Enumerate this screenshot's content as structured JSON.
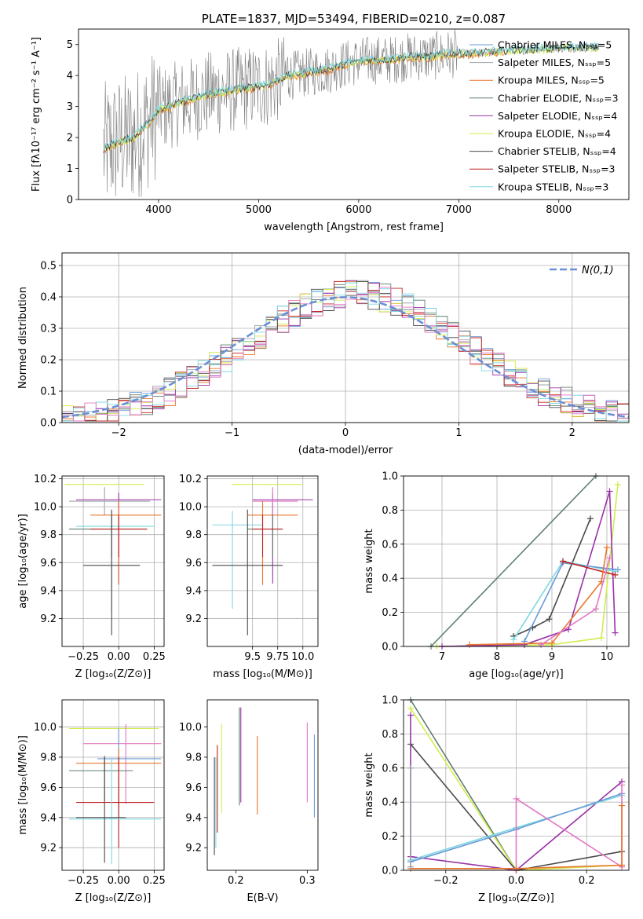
{
  "colors": {
    "chabrier_miles": "#6b9bd8",
    "salpeter_miles": "#9ea3aa",
    "kroupa_miles": "#e8762b",
    "chabrier_elodie": "#5f7f6d",
    "salpeter_elodie": "#9a32a8",
    "kroupa_elodie": "#d2ec4e",
    "chabrier_stelib": "#4a4a4a",
    "salpeter_stelib": "#c0201f",
    "kroupa_stelib": "#7ed8df",
    "pink": "#e377c2",
    "normal_curve": "#6a8fd6",
    "grid": "#b0b0b0"
  },
  "chart_data": [
    {
      "type": "line",
      "title": "PLATE=1837, MJD=53494, FIBERID=0210, z=0.087",
      "xlabel": "wavelength [Angstrom, rest frame]",
      "ylabel": "Flux [fλ10⁻¹⁷ erg cm⁻² s⁻¹ A⁻¹]",
      "xlim": [
        3200,
        8700
      ],
      "ylim": [
        0,
        5.5
      ],
      "xticks": [
        4000,
        5000,
        6000,
        7000,
        8000
      ],
      "yticks": [
        0,
        1,
        2,
        3,
        4,
        5
      ],
      "grid": false,
      "legend_position": "right",
      "legend": [
        {
          "label": "Chabrier MILES, Nₛₛₚ=5",
          "key": "chabrier_miles"
        },
        {
          "label": "Salpeter MILES, Nₛₛₚ=5",
          "key": "salpeter_miles"
        },
        {
          "label": "Kroupa MILES, Nₛₛₚ=5",
          "key": "kroupa_miles"
        },
        {
          "label": "Chabrier ELODIE, Nₛₛₚ=3",
          "key": "chabrier_elodie"
        },
        {
          "label": "Salpeter ELODIE, Nₛₛₚ=4",
          "key": "salpeter_elodie"
        },
        {
          "label": "Kroupa ELODIE, Nₛₛₚ=4",
          "key": "kroupa_elodie"
        },
        {
          "label": "Chabrier STELIB, Nₛₛₚ=4",
          "key": "chabrier_stelib"
        },
        {
          "label": "Salpeter STELIB, Nₛₛₚ=3",
          "key": "salpeter_stelib"
        },
        {
          "label": "Kroupa STELIB, Nₛₛₚ=3",
          "key": "kroupa_stelib"
        }
      ],
      "model_continuum": {
        "x": [
          3450,
          3550,
          3650,
          3750,
          3900,
          4000,
          4100,
          4300,
          4500,
          4700,
          4900,
          5100,
          5300,
          5500,
          5700,
          5900,
          6100,
          6300,
          6500,
          6700,
          6900,
          7100,
          7300,
          7500,
          7800,
          8100,
          8400
        ],
        "y": [
          1.6,
          1.8,
          1.9,
          2.0,
          2.5,
          2.9,
          3.0,
          3.2,
          3.4,
          3.5,
          3.6,
          3.7,
          4.0,
          4.1,
          4.2,
          4.4,
          4.5,
          4.5,
          4.6,
          4.6,
          4.7,
          4.7,
          4.75,
          4.8,
          4.85,
          4.9,
          4.9
        ]
      }
    },
    {
      "type": "bar",
      "title": "",
      "xlabel": "(data-model)/error",
      "ylabel": "Normed distribution",
      "xlim": [
        -2.5,
        2.5
      ],
      "ylim": [
        0,
        0.54
      ],
      "xticks": [
        -2,
        -1,
        0,
        1,
        2
      ],
      "yticks": [
        0.0,
        0.1,
        0.2,
        0.3,
        0.4,
        0.5
      ],
      "grid": true,
      "legend": "N(0,1)",
      "legend_position": "top-right",
      "bin_centers": [
        -2.4,
        -2.2,
        -2.0,
        -1.8,
        -1.6,
        -1.4,
        -1.2,
        -1.0,
        -0.8,
        -0.6,
        -0.4,
        -0.2,
        0.0,
        0.2,
        0.4,
        0.6,
        0.8,
        1.0,
        1.2,
        1.4,
        1.6,
        1.8,
        2.0,
        2.2,
        2.4
      ],
      "envelope_values": [
        0.02,
        0.03,
        0.05,
        0.07,
        0.1,
        0.14,
        0.19,
        0.25,
        0.31,
        0.36,
        0.39,
        0.4,
        0.41,
        0.4,
        0.37,
        0.33,
        0.28,
        0.23,
        0.18,
        0.13,
        0.09,
        0.06,
        0.04,
        0.03,
        0.02
      ]
    },
    {
      "type": "scatter",
      "title": "",
      "xlabel": "Z [log₁₀(Z/Z⊙)]",
      "ylabel": "age [log₁₀(age/yr)]",
      "xlim": [
        -0.4,
        0.32
      ],
      "ylim": [
        9.0,
        10.22
      ],
      "xticks": [
        -0.25,
        0.0,
        0.25
      ],
      "xticklabels": [
        "−0.25",
        "0.00",
        "0.25"
      ],
      "yticks": [
        9.2,
        9.4,
        9.6,
        9.8,
        10.0,
        10.2
      ],
      "grid": true,
      "points": [
        {
          "x": -0.02,
          "y": 10.16,
          "xerr": [
            0.36,
            0.2
          ],
          "yerr": [
            0.0,
            0.0
          ],
          "key": "kroupa_elodie"
        },
        {
          "x": 0.0,
          "y": 10.05,
          "xerr": [
            0.3,
            0.3
          ],
          "yerr": [
            0.6,
            0.05
          ],
          "key": "salpeter_elodie"
        },
        {
          "x": -0.1,
          "y": 10.04,
          "xerr": [
            0.25,
            0.32
          ],
          "yerr": [
            0.1,
            0.1
          ],
          "key": "salpeter_miles"
        },
        {
          "x": 0.0,
          "y": 9.94,
          "xerr": [
            0.2,
            0.3
          ],
          "yerr": [
            0.5,
            0.1
          ],
          "key": "kroupa_miles"
        },
        {
          "x": -0.05,
          "y": 9.86,
          "xerr": [
            0.25,
            0.3
          ],
          "yerr": [
            0.6,
            0.1
          ],
          "key": "kroupa_stelib"
        },
        {
          "x": -0.05,
          "y": 9.84,
          "xerr": [
            0.3,
            0.25
          ],
          "yerr": [
            0.2,
            0.1
          ],
          "key": "chabrier_elodie"
        },
        {
          "x": 0.0,
          "y": 9.84,
          "xerr": [
            0.2,
            0.2
          ],
          "yerr": [
            0.2,
            0.1
          ],
          "key": "salpeter_stelib"
        },
        {
          "x": -0.05,
          "y": 9.58,
          "xerr": [
            0.2,
            0.2
          ],
          "yerr": [
            0.5,
            0.4
          ],
          "key": "chabrier_stelib"
        }
      ]
    },
    {
      "type": "scatter",
      "title": "",
      "xlabel": "mass [log₁₀(M/M⊙)]",
      "ylabel": "",
      "xlim": [
        9.05,
        10.15
      ],
      "ylim": [
        9.0,
        10.22
      ],
      "xticks": [
        9.5,
        9.75,
        10.0
      ],
      "xticklabels": [
        "9.5",
        "9.75",
        "10.0"
      ],
      "yticks": [
        9.2,
        9.4,
        9.6,
        9.8,
        10.0,
        10.2
      ],
      "grid": true,
      "points": [
        {
          "x": 9.6,
          "y": 10.16,
          "xerr": [
            0.3,
            0.4
          ],
          "yerr": [
            0.0,
            0.0
          ],
          "key": "kroupa_elodie"
        },
        {
          "x": 9.7,
          "y": 10.05,
          "xerr": [
            0.2,
            0.4
          ],
          "yerr": [
            0.6,
            0.05
          ],
          "key": "salpeter_elodie"
        },
        {
          "x": 9.7,
          "y": 10.04,
          "xerr": [
            0.2,
            0.25
          ],
          "yerr": [
            0.1,
            0.1
          ],
          "key": "pink"
        },
        {
          "x": 9.6,
          "y": 9.94,
          "xerr": [
            0.15,
            0.35
          ],
          "yerr": [
            0.5,
            0.1
          ],
          "key": "kroupa_miles"
        },
        {
          "x": 9.3,
          "y": 9.87,
          "xerr": [
            0.2,
            0.3
          ],
          "yerr": [
            0.6,
            0.1
          ],
          "key": "kroupa_stelib"
        },
        {
          "x": 9.7,
          "y": 9.84,
          "xerr": [
            0.25,
            0.1
          ],
          "yerr": [
            0.2,
            0.1
          ],
          "key": "chabrier_elodie"
        },
        {
          "x": 9.6,
          "y": 9.84,
          "xerr": [
            0.1,
            0.2
          ],
          "yerr": [
            0.2,
            0.1
          ],
          "key": "salpeter_stelib"
        },
        {
          "x": 9.45,
          "y": 9.58,
          "xerr": [
            0.35,
            0.35
          ],
          "yerr": [
            0.5,
            0.4
          ],
          "key": "chabrier_stelib"
        }
      ]
    },
    {
      "type": "line",
      "title": "",
      "xlabel": "age [log₁₀(age/yr)]",
      "ylabel": "mass weight",
      "xlim": [
        6.3,
        10.4
      ],
      "ylim": [
        0,
        1.0
      ],
      "xticks": [
        7,
        8,
        9,
        10
      ],
      "yticks": [
        0.0,
        0.2,
        0.4,
        0.6,
        0.8,
        1.0
      ],
      "grid": true,
      "series": [
        {
          "key": "chabrier_elodie",
          "x": [
            6.8,
            9.8
          ],
          "y": [
            0.0,
            1.0
          ]
        },
        {
          "key": "kroupa_elodie",
          "x": [
            6.9,
            9.0,
            9.9,
            10.2
          ],
          "y": [
            0.0,
            0.01,
            0.05,
            0.95
          ]
        },
        {
          "key": "salpeter_elodie",
          "x": [
            7.0,
            8.5,
            9.3,
            10.05,
            10.15
          ],
          "y": [
            0.0,
            0.01,
            0.1,
            0.91,
            0.08
          ]
        },
        {
          "key": "chabrier_stelib",
          "x": [
            8.3,
            8.65,
            8.95,
            9.7
          ],
          "y": [
            0.06,
            0.11,
            0.16,
            0.75
          ]
        },
        {
          "key": "kroupa_stelib",
          "x": [
            8.3,
            9.2,
            10.15
          ],
          "y": [
            0.04,
            0.5,
            0.44
          ]
        },
        {
          "key": "chabrier_miles",
          "x": [
            8.5,
            9.2,
            10.2
          ],
          "y": [
            0.03,
            0.49,
            0.45
          ]
        },
        {
          "key": "salpeter_stelib",
          "x": [
            9.2,
            10.15
          ],
          "y": [
            0.5,
            0.42
          ]
        },
        {
          "key": "kroupa_miles",
          "x": [
            7.5,
            9.0,
            9.9,
            10.0
          ],
          "y": [
            0.01,
            0.02,
            0.38,
            0.58
          ]
        },
        {
          "key": "pink",
          "x": [
            8.8,
            9.8,
            10.05
          ],
          "y": [
            0.01,
            0.22,
            0.52
          ]
        }
      ]
    },
    {
      "type": "scatter",
      "title": "",
      "xlabel": "Z [log₁₀(Z/Z⊙)]",
      "ylabel": "mass [log₁₀(M/M⊙)]",
      "xlim": [
        -0.4,
        0.32
      ],
      "ylim": [
        9.05,
        10.18
      ],
      "xticks": [
        -0.25,
        0.0,
        0.25
      ],
      "xticklabels": [
        "−0.25",
        "0.00",
        "0.25"
      ],
      "yticks": [
        9.2,
        9.4,
        9.6,
        9.8,
        10.0
      ],
      "grid": true,
      "points": [
        {
          "x": -0.05,
          "y": 9.99,
          "xerr": [
            0.3,
            0.33
          ],
          "yerr": [
            0.0,
            0.0
          ],
          "key": "kroupa_elodie"
        },
        {
          "x": 0.05,
          "y": 9.89,
          "xerr": [
            0.3,
            0.25
          ],
          "yerr": [
            0.4,
            0.13
          ],
          "key": "pink"
        },
        {
          "x": 0.0,
          "y": 9.79,
          "xerr": [
            0.15,
            0.3
          ],
          "yerr": [
            0.4,
            0.2
          ],
          "key": "chabrier_miles"
        },
        {
          "x": 0.0,
          "y": 9.76,
          "xerr": [
            0.3,
            0.3
          ],
          "yerr": [
            0.3,
            0.1
          ],
          "key": "kroupa_miles"
        },
        {
          "x": -0.1,
          "y": 9.71,
          "xerr": [
            0.25,
            0.2
          ],
          "yerr": [
            0.2,
            0.1
          ],
          "key": "chabrier_elodie"
        },
        {
          "x": 0.0,
          "y": 9.5,
          "xerr": [
            0.3,
            0.25
          ],
          "yerr": [
            0.3,
            0.3
          ],
          "key": "salpeter_stelib"
        },
        {
          "x": -0.05,
          "y": 9.39,
          "xerr": [
            0.3,
            0.35
          ],
          "yerr": [
            0.3,
            0.4
          ],
          "key": "kroupa_stelib"
        },
        {
          "x": -0.1,
          "y": 9.4,
          "xerr": [
            0.2,
            0.15
          ],
          "yerr": [
            0.3,
            0.4
          ],
          "key": "chabrier_stelib"
        }
      ]
    },
    {
      "type": "scatter",
      "title": "",
      "xlabel": "E(B-V)",
      "ylabel": "",
      "xlim": [
        0.16,
        0.315
      ],
      "ylim": [
        9.05,
        10.18
      ],
      "xticks": [
        0.2,
        0.3
      ],
      "xticklabels": [
        "0.2",
        "0.3"
      ],
      "yticks": [
        9.2,
        9.4,
        9.6,
        9.8,
        10.0
      ],
      "grid": false,
      "points": [
        {
          "x": 0.17,
          "y": 9.5,
          "yerr": [
            0.35,
            0.3
          ],
          "key": "chabrier_stelib"
        },
        {
          "x": 0.172,
          "y": 9.5,
          "yerr": [
            0.3,
            0.3
          ],
          "key": "kroupa_stelib"
        },
        {
          "x": 0.174,
          "y": 9.6,
          "yerr": [
            0.3,
            0.28
          ],
          "key": "salpeter_stelib"
        },
        {
          "x": 0.18,
          "y": 9.7,
          "yerr": [
            0.27,
            0.32
          ],
          "key": "kroupa_elodie"
        },
        {
          "x": 0.205,
          "y": 9.75,
          "yerr": [
            0.27,
            0.38
          ],
          "key": "chabrier_elodie"
        },
        {
          "x": 0.207,
          "y": 9.8,
          "yerr": [
            0.3,
            0.33
          ],
          "key": "salpeter_elodie"
        },
        {
          "x": 0.23,
          "y": 9.67,
          "yerr": [
            0.25,
            0.27
          ],
          "key": "kroupa_miles"
        },
        {
          "x": 0.3,
          "y": 9.8,
          "yerr": [
            0.3,
            0.23
          ],
          "key": "pink"
        },
        {
          "x": 0.31,
          "y": 9.67,
          "yerr": [
            0.27,
            0.28
          ],
          "key": "chabrier_miles"
        }
      ]
    },
    {
      "type": "line",
      "title": "",
      "xlabel": "Z [log₁₀(Z/Z⊙)]",
      "ylabel": "mass weight",
      "xlim": [
        -0.32,
        0.32
      ],
      "ylim": [
        0,
        1.0
      ],
      "xticks": [
        -0.2,
        0.0,
        0.2
      ],
      "xticklabels": [
        "−0.2",
        "0.0",
        "0.2"
      ],
      "yticks": [
        0.0,
        0.2,
        0.4,
        0.6,
        0.8,
        1.0
      ],
      "grid": true,
      "series": [
        {
          "key": "chabrier_elodie",
          "x": [
            -0.3,
            0.0
          ],
          "y": [
            1.0,
            0.0
          ]
        },
        {
          "key": "kroupa_elodie",
          "x": [
            -0.3,
            0.0,
            0.3
          ],
          "y": [
            0.95,
            0.0,
            0.03
          ]
        },
        {
          "key": "chabrier_stelib",
          "x": [
            -0.3,
            0.0,
            0.3
          ],
          "y": [
            0.74,
            0.0,
            0.11
          ]
        },
        {
          "key": "salpeter_elodie",
          "x": [
            -0.3,
            -0.3,
            0.0,
            0.3
          ],
          "y": [
            0.91,
            0.08,
            0.0,
            0.52
          ]
        },
        {
          "key": "kroupa_stelib",
          "x": [
            -0.3,
            0.0,
            0.3
          ],
          "y": [
            0.06,
            0.25,
            0.44
          ]
        },
        {
          "key": "chabrier_miles",
          "x": [
            -0.3,
            0.0,
            0.3
          ],
          "y": [
            0.05,
            0.24,
            0.45
          ]
        },
        {
          "key": "pink",
          "x": [
            0.0,
            0.0,
            0.3,
            0.3
          ],
          "y": [
            0.0,
            0.42,
            0.02,
            0.5
          ]
        },
        {
          "key": "kroupa_miles",
          "x": [
            -0.3,
            0.0,
            0.3,
            0.3
          ],
          "y": [
            0.01,
            0.01,
            0.03,
            0.38
          ]
        },
        {
          "key": "salpeter_miles",
          "x": [
            -0.3,
            -0.3
          ],
          "y": [
            0.02,
            0.6
          ]
        }
      ]
    }
  ]
}
